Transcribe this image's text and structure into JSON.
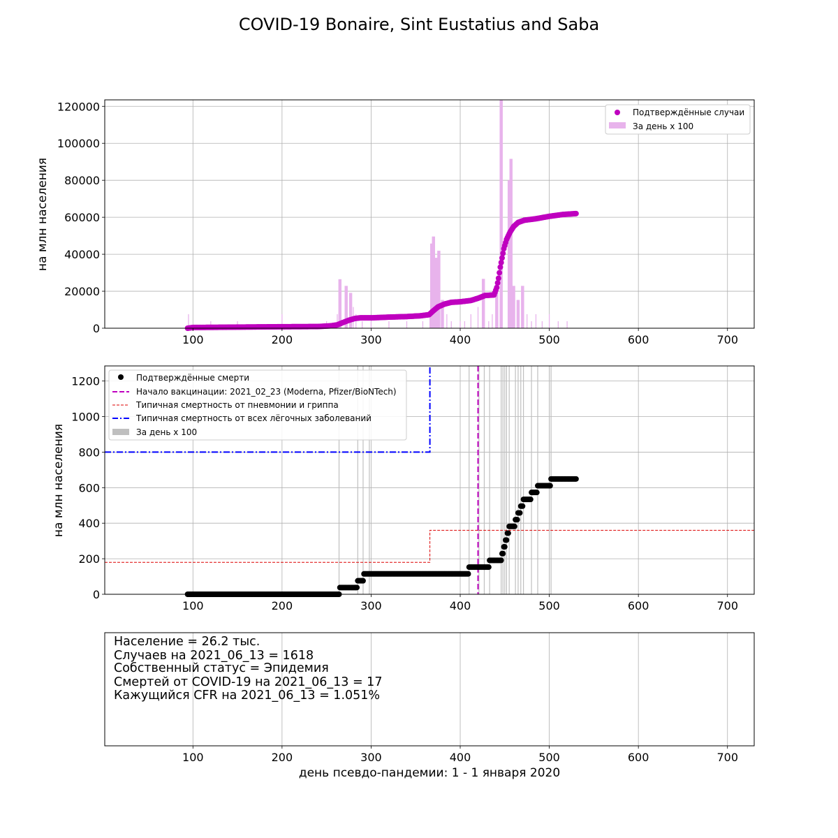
{
  "chart_data": [
    {
      "type": "line",
      "title": "COVID-19 Bonaire, Sint Eustatius and Saba",
      "ylabel": "на млн населения",
      "xlim": [
        1,
        730
      ],
      "ylim": [
        0,
        123500
      ],
      "xticks": [
        100,
        200,
        300,
        400,
        500,
        600,
        700
      ],
      "yticks": [
        0,
        20000,
        40000,
        60000,
        80000,
        100000,
        120000
      ],
      "grid": true,
      "legend_position": "top-right",
      "colors": {
        "cases": "#bf00bf",
        "bars": "#e8b3ec"
      },
      "series": [
        {
          "name": "Подтверждённые случаи",
          "kind": "points",
          "points": [
            [
              94,
              0
            ],
            [
              100,
              400
            ],
            [
              130,
              500
            ],
            [
              150,
              600
            ],
            [
              200,
              800
            ],
            [
              240,
              900
            ],
            [
              255,
              1300
            ],
            [
              262,
              1800
            ],
            [
              268,
              3000
            ],
            [
              275,
              4300
            ],
            [
              282,
              5300
            ],
            [
              288,
              5600
            ],
            [
              300,
              5600
            ],
            [
              320,
              6000
            ],
            [
              340,
              6300
            ],
            [
              355,
              6700
            ],
            [
              365,
              7300
            ],
            [
              370,
              9500
            ],
            [
              375,
              11500
            ],
            [
              382,
              13000
            ],
            [
              390,
              14000
            ],
            [
              400,
              14300
            ],
            [
              412,
              15000
            ],
            [
              420,
              16200
            ],
            [
              428,
              17700
            ],
            [
              438,
              18000
            ],
            [
              441,
              22000
            ],
            [
              443,
              27000
            ],
            [
              445,
              33000
            ],
            [
              447,
              38000
            ],
            [
              449,
              43000
            ],
            [
              452,
              48000
            ],
            [
              456,
              52000
            ],
            [
              460,
              55000
            ],
            [
              465,
              57200
            ],
            [
              472,
              58400
            ],
            [
              485,
              59200
            ],
            [
              500,
              60500
            ],
            [
              515,
              61500
            ],
            [
              530,
              62000
            ]
          ]
        },
        {
          "name": "За день х 100",
          "kind": "bars",
          "bars": [
            [
              95,
              7600
            ],
            [
              120,
              3800
            ],
            [
              150,
              3800
            ],
            [
              200,
              7600
            ],
            [
              250,
              3800
            ],
            [
              262,
              7600
            ],
            [
              265,
              26500
            ],
            [
              272,
              22900
            ],
            [
              277,
              19100
            ],
            [
              280,
              11500
            ],
            [
              283,
              7600
            ],
            [
              290,
              3800
            ],
            [
              300,
              3800
            ],
            [
              320,
              3800
            ],
            [
              340,
              3800
            ],
            [
              358,
              3800
            ],
            [
              366,
              7600
            ],
            [
              368,
              45800
            ],
            [
              370,
              49600
            ],
            [
              373,
              38100
            ],
            [
              376,
              41900
            ],
            [
              380,
              15300
            ],
            [
              385,
              7600
            ],
            [
              390,
              3800
            ],
            [
              400,
              3800
            ],
            [
              405,
              3800
            ],
            [
              412,
              7600
            ],
            [
              420,
              11500
            ],
            [
              426,
              26700
            ],
            [
              432,
              3800
            ],
            [
              436,
              7600
            ],
            [
              441,
              22900
            ],
            [
              446,
              123500
            ],
            [
              455,
              80000
            ],
            [
              457,
              91600
            ],
            [
              460,
              22900
            ],
            [
              465,
              15300
            ],
            [
              470,
              22900
            ],
            [
              475,
              7600
            ],
            [
              480,
              3800
            ],
            [
              485,
              7600
            ],
            [
              492,
              3800
            ],
            [
              500,
              7600
            ],
            [
              510,
              3800
            ],
            [
              520,
              3800
            ]
          ]
        }
      ]
    },
    {
      "type": "line",
      "ylabel": "на млн населения",
      "xlim": [
        1,
        730
      ],
      "ylim": [
        0,
        1285
      ],
      "xticks": [
        100,
        200,
        300,
        400,
        500,
        600,
        700
      ],
      "yticks": [
        0,
        200,
        400,
        600,
        800,
        1000,
        1200
      ],
      "grid": true,
      "legend_position": "top-left",
      "colors": {
        "deaths": "#000000",
        "vaccination": "#bf00bf",
        "flu": "#dd0000",
        "lung": "#0000ff",
        "bars": "#bfbfbf"
      },
      "series": [
        {
          "name": "Подтверждённые смерти",
          "kind": "points",
          "points": [
            [
              94,
              0
            ],
            [
              264,
              0
            ],
            [
              265,
              38
            ],
            [
              284,
              38
            ],
            [
              285,
              76
            ],
            [
              291,
              76
            ],
            [
              292,
              115
            ],
            [
              409,
              115
            ],
            [
              410,
              153
            ],
            [
              432,
              153
            ],
            [
              433,
              191
            ],
            [
              446,
              191
            ],
            [
              447,
              229
            ],
            [
              449,
              267
            ],
            [
              451,
              305
            ],
            [
              453,
              344
            ],
            [
              455,
              382
            ],
            [
              462,
              420
            ],
            [
              465,
              458
            ],
            [
              468,
              496
            ],
            [
              471,
              534
            ],
            [
              479,
              534
            ],
            [
              480,
              573
            ],
            [
              486,
              573
            ],
            [
              487,
              611
            ],
            [
              501,
              611
            ],
            [
              502,
              649
            ],
            [
              530,
              649
            ]
          ]
        },
        {
          "name": "Начало вакцинации: 2021_02_23 (Moderna, Pfizer/BioNTech)",
          "kind": "vline",
          "x": 420
        },
        {
          "name": "Типичная смертность от пневмонии и гриппа",
          "kind": "step",
          "points": [
            [
              1,
              180
            ],
            [
              366,
              180
            ],
            [
              366,
              360
            ],
            [
              730,
              360
            ]
          ]
        },
        {
          "name": "Типичная смертность от всех лёгочных заболеваний",
          "kind": "step",
          "points": [
            [
              1,
              800
            ],
            [
              366,
              800
            ],
            [
              366,
              1285
            ]
          ]
        },
        {
          "name": "За день х 100",
          "kind": "bars",
          "bars": [
            264,
            285,
            291,
            298,
            410,
            421,
            427,
            433,
            446,
            448,
            450,
            452,
            455,
            462,
            465,
            468,
            471,
            480,
            487,
            500,
            502
          ]
        }
      ]
    },
    {
      "type": "table",
      "xlabel": "день псевдо-пандемии: 1 - 1 января 2020",
      "xlim": [
        1,
        730
      ],
      "xticks": [
        100,
        200,
        300,
        400,
        500,
        600,
        700
      ],
      "grid": true,
      "lines": [
        "Население = 26.2 тыс.",
        "Случаев на 2021_06_13 = 1618",
        "Собственный статус = Эпидемия",
        "Смертей от COVID-19 на 2021_06_13 = 17",
        "Кажущийся CFR на 2021_06_13 = 1.051%"
      ]
    }
  ]
}
